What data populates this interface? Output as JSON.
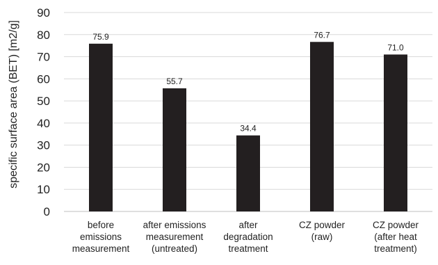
{
  "chart_data": {
    "type": "bar",
    "title": "",
    "xlabel": "",
    "ylabel": "specific surface area (BET) [m2/g]",
    "ylim": [
      0,
      90
    ],
    "y_ticks": [
      0,
      10,
      20,
      30,
      40,
      50,
      60,
      70,
      80,
      90
    ],
    "grid": true,
    "legend": "none",
    "categories": [
      [
        "before",
        "emissions",
        "measurement"
      ],
      [
        "after emissions",
        "measurement",
        "(untreated)"
      ],
      [
        "after",
        "degradation",
        "treatment"
      ],
      [
        "CZ powder",
        "(raw)"
      ],
      [
        "CZ powder",
        "(after heat",
        "treatment)"
      ]
    ],
    "values": [
      75.9,
      55.7,
      34.4,
      76.7,
      71.0
    ],
    "data_labels": [
      "75.9",
      "55.7",
      "34.4",
      "76.7",
      "71.0"
    ],
    "colors": {
      "bar": "#231f20",
      "grid": "#d9d9d9",
      "axis": "#bfbfbf"
    }
  }
}
